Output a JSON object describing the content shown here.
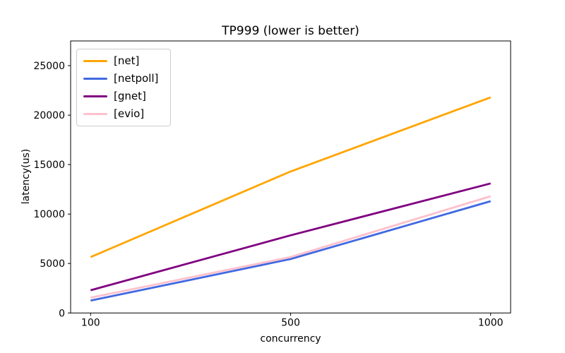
{
  "chart_data": {
    "type": "line",
    "title": "TP999 (lower is better)",
    "xlabel": "concurrency",
    "ylabel": "latency(us)",
    "categories": [
      "100",
      "500",
      "1000"
    ],
    "x_scale": "categorical-equal-spacing",
    "ylim": [
      0,
      27500
    ],
    "y_ticks": [
      0,
      5000,
      10000,
      15000,
      20000,
      25000
    ],
    "y_tick_labels": [
      "0",
      "5000",
      "10000",
      "15000",
      "20000",
      "25000"
    ],
    "grid": false,
    "legend": {
      "position": "upper-left",
      "border_color": "#cccccc"
    },
    "series": [
      {
        "name": "[net]",
        "color": "#FFA500",
        "values": [
          5650,
          14300,
          21800
        ]
      },
      {
        "name": "[netpoll]",
        "color": "#4169E1",
        "values": [
          1250,
          5450,
          11300
        ]
      },
      {
        "name": "[gnet]",
        "color": "#800080",
        "values": [
          2300,
          7850,
          13100
        ]
      },
      {
        "name": "[evio]",
        "color": "#FFC0CB",
        "values": [
          1550,
          5650,
          11800
        ]
      }
    ]
  }
}
